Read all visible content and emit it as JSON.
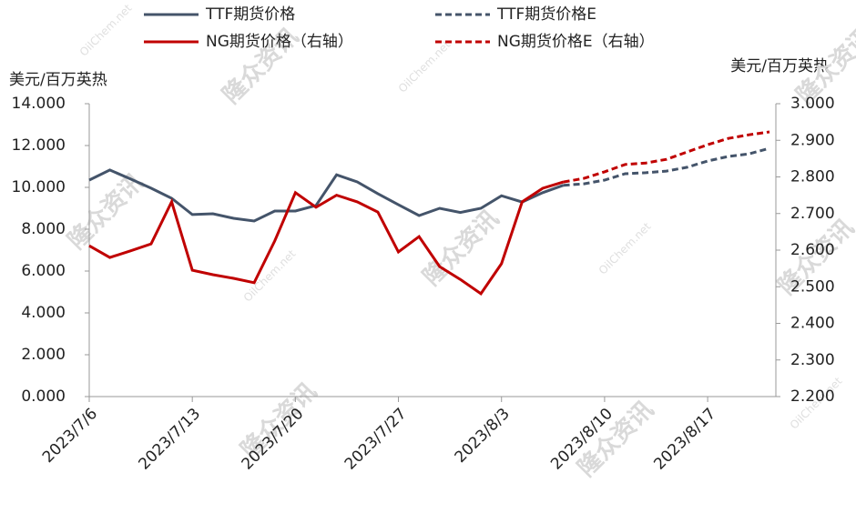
{
  "chart_data": {
    "type": "line",
    "categories": [
      "2023/7/6",
      null,
      null,
      null,
      null,
      "2023/7/13",
      null,
      null,
      null,
      null,
      "2023/7/20",
      null,
      null,
      null,
      null,
      "2023/7/27",
      null,
      null,
      null,
      null,
      "2023/8/3",
      null,
      null,
      null,
      null,
      "2023/8/10",
      null,
      null,
      null,
      null,
      "2023/8/17",
      null,
      null,
      null
    ],
    "y_label": "美元/百万英热",
    "y2_label": "美元/百万英热",
    "ylim": [
      0,
      14
    ],
    "yticks": [
      {
        "value": 0,
        "label": "0.000"
      },
      {
        "value": 2,
        "label": "2.000"
      },
      {
        "value": 4,
        "label": "4.000"
      },
      {
        "value": 6,
        "label": "6.000"
      },
      {
        "value": 8,
        "label": "8.000"
      },
      {
        "value": 10,
        "label": "10.000"
      },
      {
        "value": 12,
        "label": "12.000"
      },
      {
        "value": 14,
        "label": "14.000"
      }
    ],
    "y2lim": [
      2.2,
      3.0
    ],
    "y2ticks": [
      {
        "value": 2.2,
        "label": "2.200"
      },
      {
        "value": 2.3,
        "label": "2.300"
      },
      {
        "value": 2.4,
        "label": "2.400"
      },
      {
        "value": 2.5,
        "label": "2.500"
      },
      {
        "value": 2.6,
        "label": "2.600"
      },
      {
        "value": 2.7,
        "label": "2.700"
      },
      {
        "value": 2.8,
        "label": "2.800"
      },
      {
        "value": 2.9,
        "label": "2.900"
      },
      {
        "value": 3.0,
        "label": "3.000"
      }
    ],
    "grid": false,
    "legend": "top",
    "watermarks": [
      "隆众资讯",
      "OilChem.net"
    ],
    "series": [
      {
        "name": "TTF期货价格",
        "color": "#44546a",
        "dashed": false,
        "axis": "y",
        "values": [
          10.35,
          10.83,
          10.4,
          9.96,
          9.48,
          8.7,
          8.74,
          8.52,
          8.39,
          8.87,
          8.87,
          9.13,
          10.6,
          10.26,
          9.7,
          9.17,
          8.65,
          9.0,
          8.8,
          9.0,
          9.6,
          9.3,
          9.75,
          10.1,
          null,
          null,
          null,
          null,
          null,
          null,
          null,
          null,
          null,
          null
        ]
      },
      {
        "name": "TTF期货价格E",
        "color": "#44546a",
        "dashed": true,
        "axis": "y",
        "values": [
          null,
          null,
          null,
          null,
          null,
          null,
          null,
          null,
          null,
          null,
          null,
          null,
          null,
          null,
          null,
          null,
          null,
          null,
          null,
          null,
          null,
          null,
          null,
          10.1,
          10.17,
          10.35,
          10.65,
          10.7,
          10.78,
          10.96,
          11.26,
          11.48,
          11.6,
          11.87
        ]
      },
      {
        "name": "NG期货价格（右轴）",
        "color": "#c00000",
        "dashed": false,
        "axis": "y2",
        "values": [
          2.612,
          2.58,
          2.598,
          2.617,
          2.732,
          2.545,
          2.533,
          2.523,
          2.511,
          2.625,
          2.757,
          2.717,
          2.75,
          2.732,
          2.704,
          2.595,
          2.637,
          2.555,
          2.52,
          2.481,
          2.563,
          2.732,
          2.769,
          2.786,
          null,
          null,
          null,
          null,
          null,
          null,
          null,
          null,
          null,
          null
        ]
      },
      {
        "name": "NG期货价格E（右轴）",
        "color": "#c00000",
        "dashed": true,
        "axis": "y2",
        "values": [
          null,
          null,
          null,
          null,
          null,
          null,
          null,
          null,
          null,
          null,
          null,
          null,
          null,
          null,
          null,
          null,
          null,
          null,
          null,
          null,
          null,
          null,
          null,
          2.786,
          2.796,
          2.814,
          2.834,
          2.838,
          2.848,
          2.868,
          2.888,
          2.905,
          2.915,
          2.923
        ]
      }
    ]
  }
}
